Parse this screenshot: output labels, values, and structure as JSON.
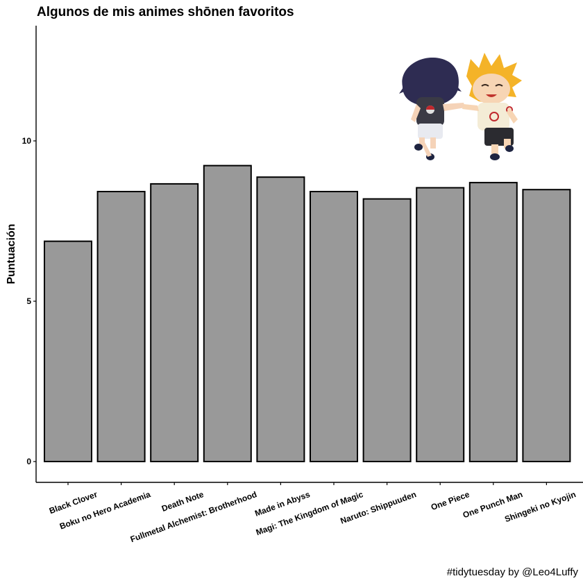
{
  "chart_data": {
    "type": "bar",
    "title": "Algunos de mis animes shōnen favoritos",
    "xlabel": "",
    "ylabel": "Puntuación",
    "categories": [
      "Black Clover",
      "Boku no Hero Academia",
      "Death Note",
      "Fullmetal Alchemist: Brotherhood",
      "Made in Abyss",
      "Magi: The Kingdom of Magic",
      "Naruto: Shippuuden",
      "One Piece",
      "One Punch Man",
      "Shingeki no Kyojin"
    ],
    "values": [
      6.87,
      8.42,
      8.66,
      9.23,
      8.87,
      8.42,
      8.19,
      8.54,
      8.7,
      8.48
    ],
    "ylim": [
      -0.65,
      13.6
    ],
    "yticks": [
      0,
      5,
      10
    ],
    "grid": false,
    "bar_color": "#999999",
    "bar_outline": "#000000",
    "caption": "#tidytuesday by @Leo4Luffy"
  }
}
